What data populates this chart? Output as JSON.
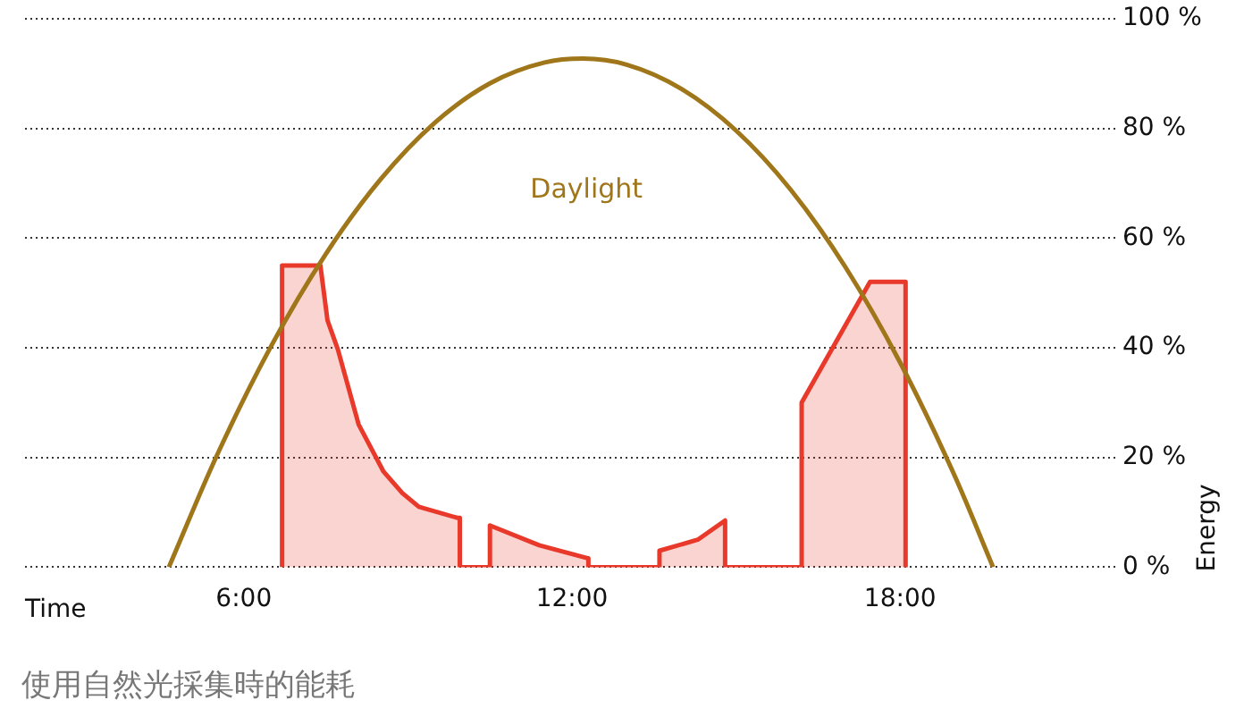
{
  "chart_data": {
    "type": "line",
    "title": "使用自然光採集時的能耗",
    "xlabel": "Time",
    "ylabel": "Energy",
    "xlim": [
      2,
      22
    ],
    "xticks": [
      {
        "value": 6,
        "label": "6:00"
      },
      {
        "value": 12,
        "label": "12:00"
      },
      {
        "value": 18,
        "label": "18:00"
      }
    ],
    "ylim": [
      0,
      100
    ],
    "yticks": [
      {
        "value": 0,
        "label": "0 %"
      },
      {
        "value": 20,
        "label": "20 %"
      },
      {
        "value": 40,
        "label": "40 %"
      },
      {
        "value": 60,
        "label": "60 %"
      },
      {
        "value": 80,
        "label": "80 %"
      },
      {
        "value": 100,
        "label": "100 %"
      }
    ],
    "grid": "y",
    "legend": false,
    "marker": "none",
    "series": [
      {
        "name": "Daylight",
        "type": "line",
        "color": "#a0761a",
        "x": [
          4.63,
          5.5,
          6.5,
          7.5,
          8.5,
          9.5,
          10.5,
          11.5,
          12.2,
          13,
          14,
          15,
          16,
          17,
          18,
          19,
          19.7
        ],
        "values": [
          0,
          20.2,
          40.3,
          57.1,
          70.7,
          81.1,
          88.2,
          92,
          92.7,
          91.6,
          87.2,
          79.6,
          68.8,
          54.7,
          37.3,
          16.6,
          0
        ]
      },
      {
        "type": "area",
        "color": "#e8392b",
        "x": [
          6.7,
          6.7,
          7.4,
          7.53,
          7.72,
          8.1,
          8.55,
          8.9,
          9.2,
          9.9,
          9.95,
          9.95,
          10.5,
          10.5,
          11.4,
          12.3,
          12.3,
          13.6,
          13.6,
          14.3,
          14.8,
          14.8,
          16.2,
          16.2,
          17.45,
          18.1,
          18.1
        ],
        "values": [
          0,
          55,
          55,
          45,
          39.7,
          26,
          17.5,
          13.5,
          11,
          9,
          9,
          0,
          0,
          7.6,
          4,
          1.6,
          0,
          0,
          3,
          5,
          8.5,
          0,
          0,
          30,
          52,
          52,
          0
        ]
      }
    ]
  }
}
